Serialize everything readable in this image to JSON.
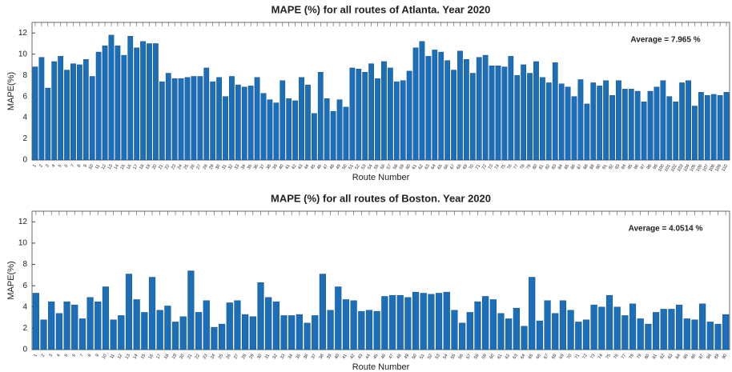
{
  "chart_data": [
    {
      "type": "bar",
      "title": "MAPE (%) for all routes of Atlanta. Year 2020",
      "x_label": "Route Number",
      "y_label": "MAPE(%)",
      "annotation": "Average =  7.965 %",
      "color": "#1b6fb8",
      "categories": [
        "1",
        "2",
        "3",
        "4",
        "5",
        "6",
        "7",
        "8",
        "9",
        "10",
        "11",
        "12",
        "13",
        "14",
        "15",
        "16",
        "17",
        "18",
        "19",
        "20",
        "21",
        "22",
        "23",
        "24",
        "25",
        "26",
        "27",
        "28",
        "29",
        "30",
        "31",
        "32",
        "33",
        "34",
        "35",
        "36",
        "37",
        "38",
        "39",
        "40",
        "41",
        "42",
        "43",
        "44",
        "45",
        "46",
        "47",
        "48",
        "49",
        "50",
        "51",
        "52",
        "53",
        "54",
        "55",
        "56",
        "57",
        "58",
        "59",
        "60",
        "61",
        "62",
        "63",
        "64",
        "65",
        "66",
        "67",
        "68",
        "69",
        "70",
        "71",
        "72",
        "73",
        "74",
        "75",
        "76",
        "77",
        "78",
        "79",
        "80",
        "81",
        "82",
        "83",
        "84",
        "85",
        "86",
        "87",
        "88",
        "89",
        "90",
        "91",
        "92",
        "93",
        "94",
        "95",
        "96",
        "97",
        "98",
        "99",
        "100",
        "101",
        "102",
        "103",
        "104",
        "105",
        "106",
        "107",
        "108",
        "109",
        "110"
      ],
      "values": [
        8.8,
        9.7,
        6.8,
        9.3,
        9.8,
        8.5,
        9.1,
        9.0,
        9.5,
        7.9,
        10.2,
        10.8,
        11.8,
        10.8,
        9.9,
        11.7,
        10.6,
        11.2,
        11.0,
        11.0,
        7.4,
        8.2,
        7.7,
        7.7,
        7.8,
        7.9,
        7.9,
        8.7,
        7.4,
        7.8,
        6.0,
        7.9,
        7.1,
        6.9,
        7.0,
        7.8,
        6.3,
        5.7,
        5.4,
        7.5,
        5.8,
        5.6,
        7.8,
        7.1,
        4.4,
        8.3,
        5.8,
        4.6,
        5.7,
        5.0,
        8.7,
        8.6,
        8.3,
        9.1,
        7.7,
        9.3,
        8.7,
        7.4,
        7.5,
        8.4,
        10.6,
        11.2,
        9.8,
        10.4,
        10.2,
        9.4,
        8.5,
        10.3,
        9.5,
        8.2,
        9.7,
        9.9,
        8.9,
        8.9,
        8.8,
        9.8,
        8.0,
        9.0,
        8.2,
        9.3,
        7.8,
        7.3,
        9.2,
        7.2,
        6.9,
        6.0,
        7.6,
        5.3,
        7.3,
        7.0,
        7.5,
        6.1,
        7.5,
        6.7,
        6.7,
        6.5,
        5.5,
        6.5,
        6.9,
        7.5,
        6.0,
        5.5,
        7.3,
        7.5,
        5.1,
        6.4,
        6.1,
        6.2,
        6.1,
        6.4
      ],
      "ylim": [
        0,
        13
      ],
      "yticks": [
        0,
        2,
        4,
        6,
        8,
        10,
        12
      ]
    },
    {
      "type": "bar",
      "title": "MAPE (%) for all routes of Boston. Year 2020",
      "x_label": "Route Number",
      "y_label": "MAPE(%)",
      "annotation": "Average =  4.0514 %",
      "color": "#1b6fb8",
      "categories": [
        "1",
        "2",
        "3",
        "4",
        "5",
        "6",
        "7",
        "8",
        "9",
        "10",
        "11",
        "12",
        "13",
        "14",
        "15",
        "16",
        "17",
        "18",
        "19",
        "20",
        "21",
        "22",
        "23",
        "24",
        "25",
        "26",
        "27",
        "28",
        "29",
        "30",
        "31",
        "32",
        "33",
        "34",
        "35",
        "36",
        "37",
        "38",
        "39",
        "40",
        "41",
        "42",
        "43",
        "44",
        "45",
        "46",
        "47",
        "48",
        "49",
        "50",
        "51",
        "52",
        "53",
        "54",
        "55",
        "56",
        "57",
        "58",
        "59",
        "60",
        "61",
        "62",
        "63",
        "64",
        "65",
        "66",
        "67",
        "68",
        "69",
        "70",
        "71",
        "72",
        "73",
        "74",
        "75",
        "76",
        "77",
        "78",
        "79",
        "80",
        "81",
        "82",
        "83",
        "84",
        "85",
        "86",
        "87",
        "88",
        "89",
        "90"
      ],
      "values": [
        5.3,
        2.8,
        4.5,
        3.4,
        4.5,
        4.2,
        2.9,
        4.9,
        4.5,
        5.9,
        2.8,
        3.2,
        7.1,
        4.7,
        3.5,
        6.8,
        3.7,
        4.1,
        2.6,
        3.1,
        7.4,
        3.5,
        4.6,
        2.1,
        2.4,
        4.4,
        4.6,
        3.3,
        3.1,
        6.3,
        4.9,
        4.5,
        3.2,
        3.2,
        3.3,
        2.5,
        3.2,
        7.1,
        3.7,
        5.9,
        4.7,
        4.6,
        3.6,
        3.7,
        3.6,
        5.0,
        5.1,
        5.1,
        4.9,
        5.4,
        5.3,
        5.2,
        5.3,
        5.4,
        3.7,
        2.5,
        3.5,
        4.5,
        5.0,
        4.7,
        3.4,
        2.9,
        3.9,
        2.2,
        6.8,
        2.7,
        4.6,
        3.4,
        4.6,
        3.7,
        2.6,
        2.8,
        4.2,
        4.0,
        5.1,
        4.0,
        3.2,
        4.3,
        2.9,
        2.4,
        3.5,
        3.8,
        3.8,
        4.2,
        2.9,
        2.8,
        4.3,
        2.6,
        2.4,
        3.3
      ],
      "ylim": [
        0,
        13
      ],
      "yticks": [
        0,
        2,
        4,
        6,
        8,
        10,
        12
      ]
    }
  ]
}
